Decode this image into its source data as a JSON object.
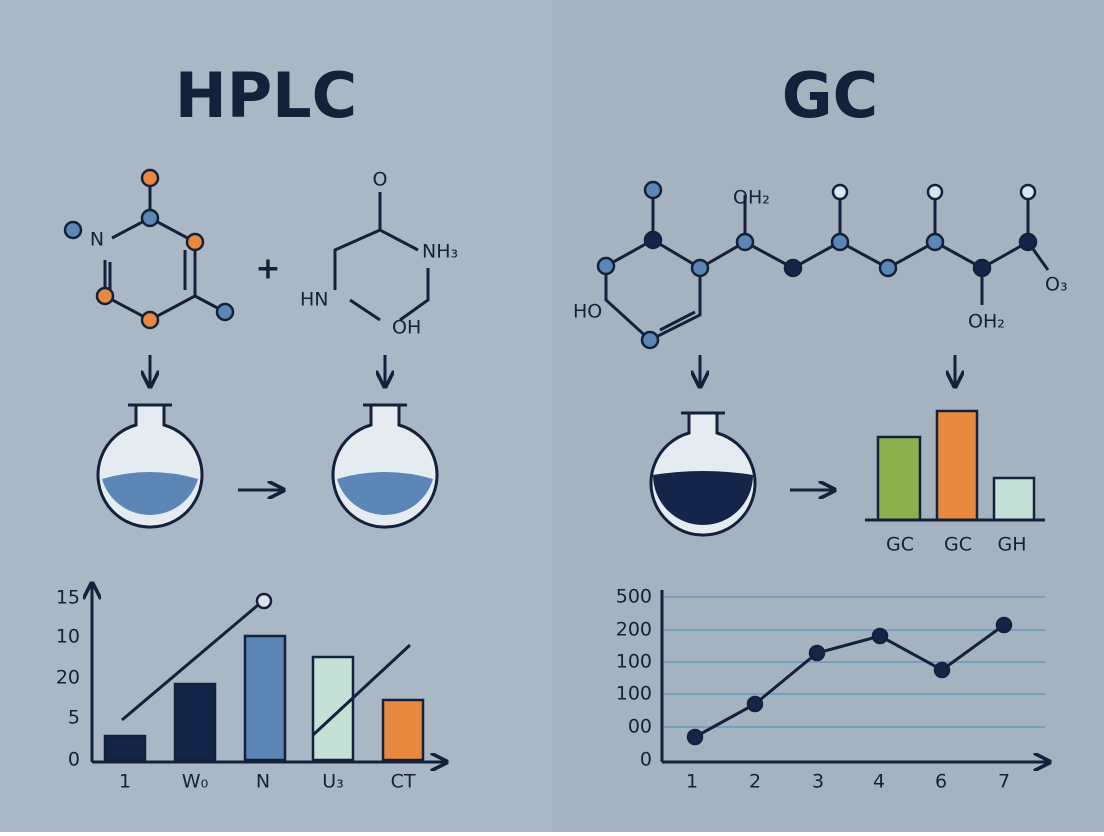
{
  "hplc": {
    "title": "HPLC",
    "molecule": {
      "ring_atom": "N",
      "plus": "+",
      "oxygen": "O",
      "amine": "NH₃",
      "left_group": "HN",
      "hydroxyl": "OH"
    },
    "chart": {
      "y_labels": [
        "15",
        "10",
        "20",
        "5",
        "0"
      ],
      "x_labels": [
        "1",
        "W₀",
        "N",
        "U₃",
        "CT"
      ]
    }
  },
  "gc": {
    "title": "GC",
    "molecule": {
      "top_group": "OH₂",
      "left_group": "HO",
      "bottom_group": "OH₂",
      "end_group": "O₃"
    },
    "bars": {
      "labels": [
        "GC",
        "GC",
        "GH"
      ]
    },
    "chart": {
      "y_labels": [
        "500",
        "200",
        "100",
        "100",
        "00",
        "0"
      ],
      "x_labels": [
        "1",
        "2",
        "3",
        "4",
        "6",
        "7"
      ]
    }
  }
}
